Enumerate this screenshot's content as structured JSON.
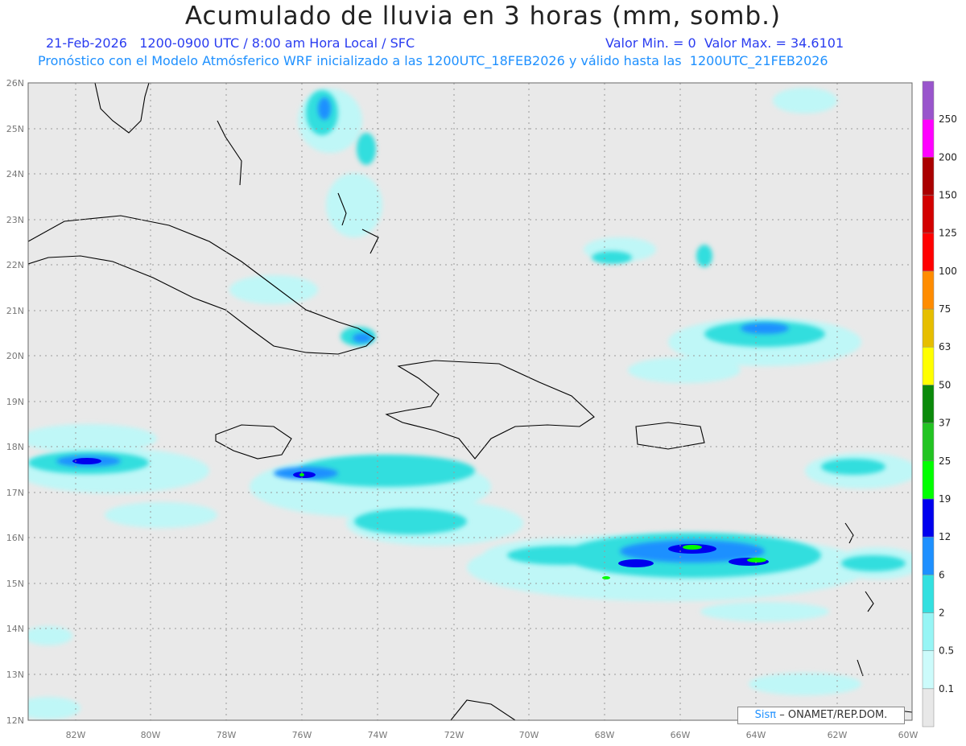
{
  "header": {
    "title": "Acumulado de lluvia en 3 horas (mm, somb.)",
    "line1_left": "21-Feb-2026   1200-0900 UTC / 8:00 am Hora Local / SFC",
    "line1_right": "Valor Min. = 0  Valor Max. = 34.6101",
    "line2": "Pronóstico con el Modelo Atmósferico WRF inicializado a las 1200UTC_18FEB2026 y válido hasta las  1200UTC_21FEB2026"
  },
  "map": {
    "lon_range": [
      -83.2,
      -60
    ],
    "lat_range": [
      12,
      26
    ],
    "lat_ticks": [
      "26N",
      "25N",
      "24N",
      "23N",
      "22N",
      "21N",
      "20N",
      "19N",
      "18N",
      "17N",
      "16N",
      "15N",
      "14N",
      "13N",
      "12N"
    ],
    "lon_ticks": [
      "82W",
      "80W",
      "78W",
      "76W",
      "74W",
      "72W",
      "70W",
      "68W",
      "66W",
      "64W",
      "62W",
      "60W"
    ]
  },
  "colorbar": {
    "levels": [
      "0.1",
      "0.5",
      "2",
      "6",
      "12",
      "19",
      "25",
      "37",
      "50",
      "63",
      "75",
      "100",
      "125",
      "150",
      "200",
      "250"
    ],
    "colors": [
      "#e8e8e8",
      "#ccfbfb",
      "#96f5f5",
      "#33e0e0",
      "#1e90ff",
      "#0000ee",
      "#00ff00",
      "#22c422",
      "#0a8a0a",
      "#ffff00",
      "#e6be00",
      "#ff8c00",
      "#ff0000",
      "#d20000",
      "#aa0000",
      "#ff00ff",
      "#9955cc"
    ]
  },
  "credit": {
    "sis": "Sisπ",
    "text": "– ONAMET/REP.DOM."
  }
}
